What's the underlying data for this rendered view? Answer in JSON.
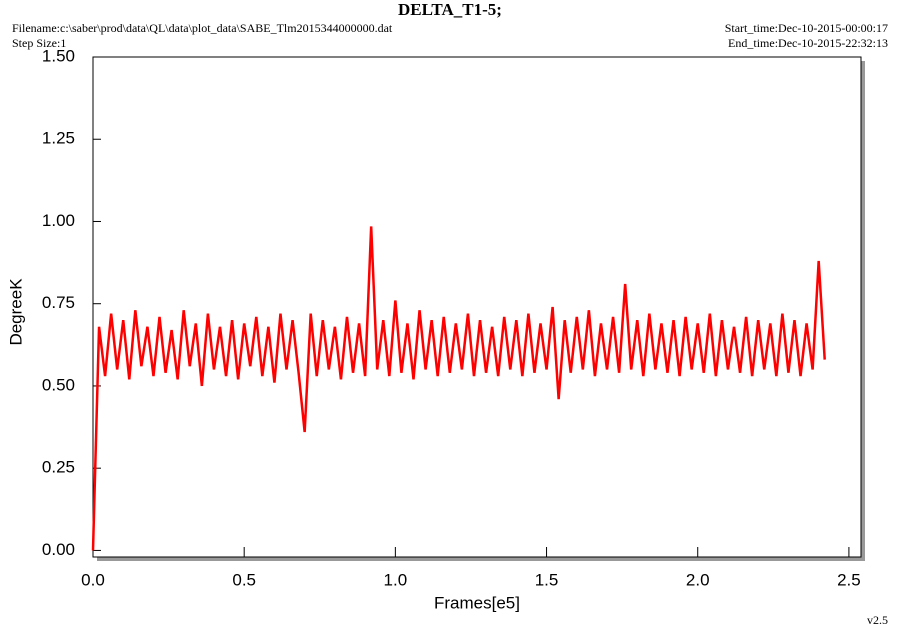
{
  "chart_data": {
    "type": "line",
    "title": "DELTA_T1-5;",
    "filename": "Filename:c:\\saber\\prod\\data\\QL\\data\\plot_data\\SABE_Tlm2015344000000.dat",
    "step_size": "Step Size:1",
    "start_time": "Start_time:Dec-10-2015-00:00:17",
    "end_time": "End_time:Dec-10-2015-22:32:13",
    "version": "v2.5",
    "xlabel": "Frames[e5]",
    "ylabel": "DegreeK",
    "xlim": [
      0,
      2.54
    ],
    "ylim": [
      -0.02,
      1.5
    ],
    "xticks": [
      {
        "value": 0,
        "label": "0.0"
      },
      0.5,
      {
        "value": 1,
        "label": "1.0"
      },
      1.5,
      {
        "value": 2,
        "label": "2.0"
      },
      2.5
    ],
    "yticks": [
      {
        "value": 0,
        "label": "0.00"
      },
      {
        "value": 0.25,
        "label": "0.25"
      },
      {
        "value": 0.5,
        "label": "0.50"
      },
      {
        "value": 0.75,
        "label": "0.75"
      },
      {
        "value": 1,
        "label": "1.00"
      },
      {
        "value": 1.25,
        "label": "1.25"
      },
      {
        "value": 1.5,
        "label": "1.50"
      }
    ],
    "series": [
      {
        "color": "#ff0000",
        "x": [
          0,
          0.02,
          0.04,
          0.06,
          0.08,
          0.1,
          0.12,
          0.14,
          0.16,
          0.18,
          0.2,
          0.22,
          0.24,
          0.26,
          0.28,
          0.3,
          0.32,
          0.34,
          0.36,
          0.38,
          0.4,
          0.42,
          0.44,
          0.46,
          0.48,
          0.5,
          0.52,
          0.54,
          0.56,
          0.58,
          0.6,
          0.62,
          0.64,
          0.66,
          0.68,
          0.7,
          0.72,
          0.74,
          0.76,
          0.78,
          0.8,
          0.82,
          0.84,
          0.86,
          0.88,
          0.9,
          0.92,
          0.94,
          0.96,
          0.98,
          1,
          1.02,
          1.04,
          1.06,
          1.08,
          1.1,
          1.12,
          1.14,
          1.16,
          1.18,
          1.2,
          1.22,
          1.24,
          1.26,
          1.28,
          1.3,
          1.32,
          1.34,
          1.36,
          1.38,
          1.4,
          1.42,
          1.44,
          1.46,
          1.48,
          1.5,
          1.52,
          1.54,
          1.56,
          1.58,
          1.6,
          1.62,
          1.64,
          1.66,
          1.68,
          1.7,
          1.72,
          1.74,
          1.76,
          1.78,
          1.8,
          1.82,
          1.84,
          1.86,
          1.88,
          1.9,
          1.92,
          1.94,
          1.96,
          1.98,
          2,
          2.02,
          2.04,
          2.06,
          2.08,
          2.1,
          2.12,
          2.14,
          2.16,
          2.18,
          2.2,
          2.22,
          2.24,
          2.26,
          2.28,
          2.3,
          2.32,
          2.34,
          2.36,
          2.38,
          2.4,
          2.42
        ],
        "values": [
          0,
          0.68,
          0.53,
          0.72,
          0.55,
          0.7,
          0.52,
          0.73,
          0.56,
          0.68,
          0.53,
          0.71,
          0.54,
          0.67,
          0.52,
          0.73,
          0.56,
          0.69,
          0.5,
          0.72,
          0.55,
          0.68,
          0.53,
          0.7,
          0.52,
          0.69,
          0.56,
          0.71,
          0.53,
          0.68,
          0.51,
          0.72,
          0.55,
          0.7,
          0.54,
          0.36,
          0.72,
          0.53,
          0.7,
          0.55,
          0.68,
          0.52,
          0.71,
          0.54,
          0.69,
          0.53,
          0.985,
          0.55,
          0.7,
          0.53,
          0.76,
          0.54,
          0.69,
          0.52,
          0.73,
          0.55,
          0.7,
          0.53,
          0.71,
          0.54,
          0.69,
          0.55,
          0.72,
          0.53,
          0.7,
          0.54,
          0.68,
          0.53,
          0.71,
          0.55,
          0.7,
          0.53,
          0.72,
          0.54,
          0.69,
          0.55,
          0.74,
          0.46,
          0.7,
          0.54,
          0.71,
          0.55,
          0.73,
          0.53,
          0.69,
          0.55,
          0.71,
          0.54,
          0.81,
          0.55,
          0.7,
          0.53,
          0.72,
          0.55,
          0.69,
          0.54,
          0.7,
          0.53,
          0.71,
          0.55,
          0.69,
          0.54,
          0.72,
          0.53,
          0.7,
          0.55,
          0.68,
          0.54,
          0.71,
          0.53,
          0.7,
          0.55,
          0.69,
          0.53,
          0.72,
          0.54,
          0.7,
          0.53,
          0.69,
          0.55,
          0.88,
          0.58
        ]
      }
    ]
  }
}
